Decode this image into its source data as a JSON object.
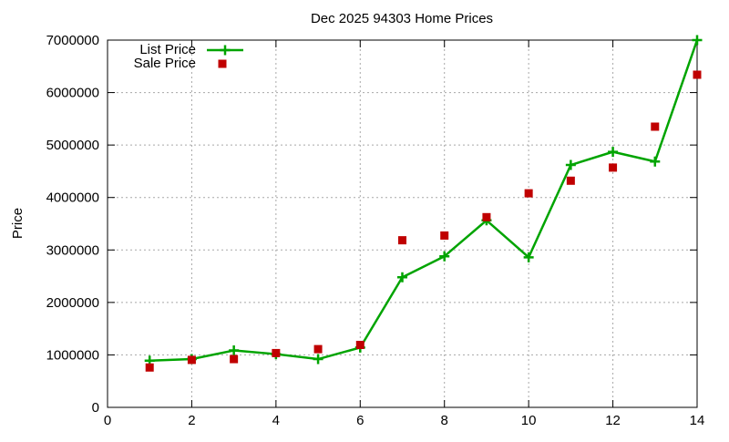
{
  "window": {
    "background": "#ffffff"
  },
  "chart_data": {
    "type": "line",
    "title": "Dec 2025 94303 Home Prices",
    "xlabel": "",
    "ylabel": "Price",
    "xlim": [
      0,
      14
    ],
    "ylim": [
      0,
      7000000
    ],
    "x_ticks": [
      0,
      2,
      4,
      6,
      8,
      10,
      12,
      14
    ],
    "y_ticks": [
      0,
      1000000,
      2000000,
      3000000,
      4000000,
      5000000,
      6000000,
      7000000
    ],
    "grid": true,
    "legend_position": "top-left-inside",
    "x": [
      1,
      2,
      3,
      4,
      5,
      6,
      7,
      8,
      9,
      10,
      11,
      12,
      13,
      14
    ],
    "series": [
      {
        "name": "List Price",
        "type": "line",
        "marker": "plus",
        "color": "#00a400",
        "values": [
          890000,
          920000,
          1085000,
          1015000,
          920000,
          1140000,
          2480000,
          2880000,
          3565000,
          2860000,
          4620000,
          4870000,
          4685000,
          7000000
        ]
      },
      {
        "name": "Sale Price",
        "type": "scatter",
        "marker": "square",
        "color": "#c00000",
        "values": [
          760000,
          905000,
          920000,
          1035000,
          1110000,
          1190000,
          3185000,
          3275000,
          3625000,
          4080000,
          4320000,
          4570000,
          5350000,
          6340000
        ]
      }
    ],
    "style": {
      "grid_color": "#a8a8a8",
      "axis_color": "#000000",
      "text_color": "#000000"
    }
  }
}
